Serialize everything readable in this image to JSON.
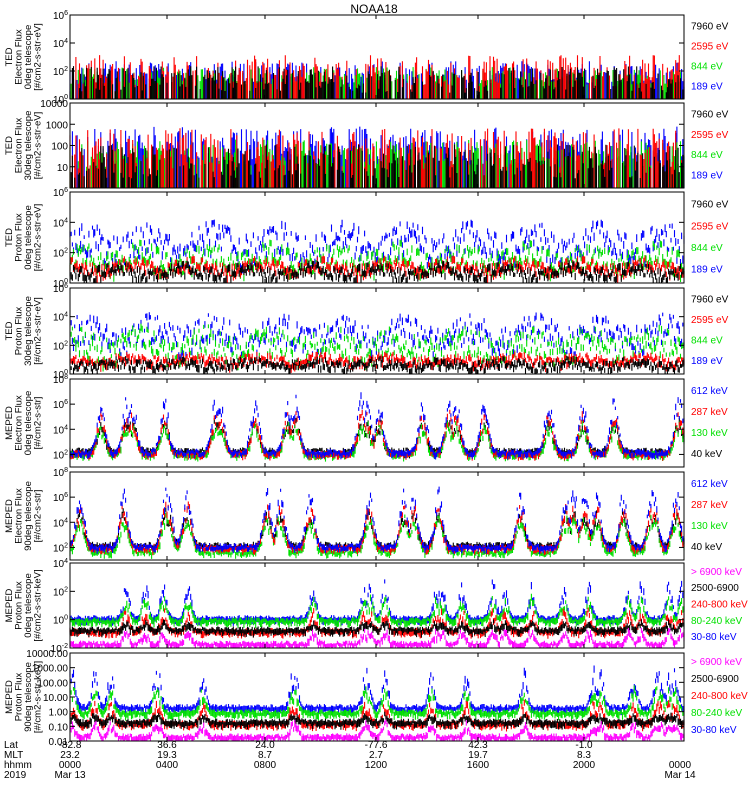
{
  "title": "NOAA18",
  "colors": {
    "black": "#000000",
    "red": "#ff0000",
    "green": "#00e000",
    "blue": "#0000ff",
    "magenta": "#ff00ff"
  },
  "chart_data": [
    {
      "type": "line",
      "seed": 11,
      "style": "spiky",
      "log_scale": true,
      "ylim": [
        1,
        1000000
      ],
      "ylabel": [
        "TED",
        "Electron Flux",
        "0deg telescope",
        "[#/cm2-s-str-eV]"
      ],
      "ytick_labels": [
        {
          "v": 1,
          "t": "10^0"
        },
        {
          "v": 100,
          "t": "10^2"
        },
        {
          "v": 10000,
          "t": "10^4"
        },
        {
          "v": 1000000,
          "t": "10^6"
        }
      ],
      "series": [
        {
          "name": "7960 eV",
          "color": "black",
          "base": 0.45,
          "amp": 0.6
        },
        {
          "name": "2595 eV",
          "color": "red",
          "base": 0.9,
          "amp": 0.7
        },
        {
          "name": "844 eV",
          "color": "green",
          "base": 1.0,
          "amp": 0.4
        },
        {
          "name": "189 eV",
          "color": "blue",
          "base": 1.1,
          "amp": 0.5
        }
      ]
    },
    {
      "type": "line",
      "seed": 23,
      "style": "spiky",
      "log_scale": true,
      "ylim": [
        1,
        10000
      ],
      "ylabel": [
        "TED",
        "Electron Flux",
        "30deg telescope",
        "[#/cm2-s-str-eV]"
      ],
      "ytick_labels": [
        {
          "v": 10,
          "t": "10"
        },
        {
          "v": 100,
          "t": "100"
        },
        {
          "v": 1000,
          "t": "1000"
        },
        {
          "v": 10000,
          "t": "10000"
        }
      ],
      "series": [
        {
          "name": "7960 eV",
          "color": "black",
          "base": 0.45,
          "amp": 0.5
        },
        {
          "name": "2595 eV",
          "color": "red",
          "base": 0.9,
          "amp": 0.6
        },
        {
          "name": "844 eV",
          "color": "green",
          "base": 1.0,
          "amp": 0.4
        },
        {
          "name": "189 eV",
          "color": "blue",
          "base": 1.3,
          "amp": 0.5
        }
      ]
    },
    {
      "type": "line",
      "seed": 37,
      "style": "noisy",
      "log_scale": true,
      "ylim": [
        1,
        1000000
      ],
      "ylabel": [
        "TED",
        "Proton Flux",
        "0deg telescope",
        "[#/cm2-s-str-eV]"
      ],
      "ytick_labels": [
        {
          "v": 1,
          "t": "10^0"
        },
        {
          "v": 100,
          "t": "10^2"
        },
        {
          "v": 10000,
          "t": "10^4"
        },
        {
          "v": 1000000,
          "t": "10^6"
        }
      ],
      "series": [
        {
          "name": "7960 eV",
          "color": "black",
          "base": 0.6,
          "amp": 0.4
        },
        {
          "name": "2595 eV",
          "color": "red",
          "base": 0.9,
          "amp": 0.4
        },
        {
          "name": "844 eV",
          "color": "green",
          "base": 1.1,
          "amp": 0.8
        },
        {
          "name": "189 eV",
          "color": "blue",
          "base": 2.0,
          "amp": 1.0
        }
      ]
    },
    {
      "type": "line",
      "seed": 53,
      "style": "noisy",
      "log_scale": true,
      "ylim": [
        1,
        1000000
      ],
      "ylabel": [
        "TED",
        "Proton Flux",
        "30deg telescope",
        "[#/cm2-s-str-eV]"
      ],
      "ytick_labels": [
        {
          "v": 1,
          "t": "10^0"
        },
        {
          "v": 100,
          "t": "10^2"
        },
        {
          "v": 10000,
          "t": "10^4"
        },
        {
          "v": 1000000,
          "t": "10^6"
        }
      ],
      "series": [
        {
          "name": "7960 eV",
          "color": "black",
          "base": 0.6,
          "amp": 0.3
        },
        {
          "name": "2595 eV",
          "color": "red",
          "base": 0.9,
          "amp": 0.3
        },
        {
          "name": "844 eV",
          "color": "green",
          "base": 1.5,
          "amp": 0.9
        },
        {
          "name": "189 eV",
          "color": "blue",
          "base": 2.3,
          "amp": 0.9
        }
      ]
    },
    {
      "type": "line",
      "seed": 71,
      "style": "peaks",
      "log_scale": true,
      "ylim": [
        10,
        100000000
      ],
      "ylabel": [
        "MEPED",
        "Electron Flux",
        "0deg telescope",
        "[#/cm2-s-str]"
      ],
      "ytick_labels": [
        {
          "v": 100,
          "t": "10^2"
        },
        {
          "v": 10000,
          "t": "10^4"
        },
        {
          "v": 1000000,
          "t": "10^6"
        },
        {
          "v": 100000000,
          "t": "10^8"
        }
      ],
      "series": [
        {
          "name": "612 keV",
          "color": "blue",
          "base": 2.1,
          "amp": 4.6
        },
        {
          "name": "287 keV",
          "color": "red",
          "base": 2.0,
          "amp": 3.4
        },
        {
          "name": "130 keV",
          "color": "green",
          "base": 1.95,
          "amp": 2.6
        },
        {
          "name": "40 keV",
          "color": "black",
          "base": 2.2,
          "amp": 2.6
        }
      ]
    },
    {
      "type": "line",
      "seed": 89,
      "style": "peaks",
      "log_scale": true,
      "ylim": [
        10,
        100000000
      ],
      "ylabel": [
        "MEPED",
        "Electron Flux",
        "90deg telescope",
        "[#/cm2-s-str]"
      ],
      "ytick_labels": [
        {
          "v": 100,
          "t": "10^2"
        },
        {
          "v": 10000,
          "t": "10^4"
        },
        {
          "v": 1000000,
          "t": "10^6"
        },
        {
          "v": 100000000,
          "t": "10^8"
        }
      ],
      "series": [
        {
          "name": "612 keV",
          "color": "blue",
          "base": 2.0,
          "amp": 4.7
        },
        {
          "name": "287 keV",
          "color": "red",
          "base": 1.9,
          "amp": 3.6
        },
        {
          "name": "130 keV",
          "color": "green",
          "base": 1.6,
          "amp": 3.0
        },
        {
          "name": "40 keV",
          "color": "black",
          "base": 2.1,
          "amp": 2.9
        }
      ]
    },
    {
      "type": "line",
      "seed": 97,
      "style": "proton",
      "log_scale": true,
      "ylim": [
        0.01,
        10000
      ],
      "ylabel": [
        "MEPED",
        "Proton Flux",
        "0deg telescope",
        "[#/cm2-s-str-keV]"
      ],
      "ytick_labels": [
        {
          "v": 0.01,
          "t": "10^-2"
        },
        {
          "v": 1,
          "t": "10^0"
        },
        {
          "v": 100,
          "t": "10^2"
        },
        {
          "v": 10000,
          "t": "10^4"
        }
      ],
      "series": [
        {
          "name": "> 6900 keV",
          "color": "magenta",
          "base": -1.6,
          "amp": 1.0
        },
        {
          "name": "2500-6900",
          "color": "black",
          "base": -0.6,
          "amp": 0.5
        },
        {
          "name": "240-800 keV",
          "color": "red",
          "base": -0.7,
          "amp": 1.4
        },
        {
          "name": "80-240 keV",
          "color": "green",
          "base": 0.05,
          "amp": 1.6
        },
        {
          "name": "30-80 keV",
          "color": "blue",
          "base": 0.2,
          "amp": 2.4
        }
      ]
    },
    {
      "type": "line",
      "seed": 113,
      "style": "proton",
      "log_scale": true,
      "ylim": [
        0.01,
        10000
      ],
      "ylabel": [
        "MEPED",
        "Proton Flux",
        "90deg telescope",
        "[#/cm2-s-str-keV]"
      ],
      "ytick_labels": [
        {
          "v": 0.01,
          "t": "0.01"
        },
        {
          "v": 0.1,
          "t": "0.10"
        },
        {
          "v": 1,
          "t": "1.00"
        },
        {
          "v": 10,
          "t": "10.00"
        },
        {
          "v": 100,
          "t": "100.00"
        },
        {
          "v": 1000,
          "t": "1000.00"
        },
        {
          "v": 10000,
          "t": "10000.00"
        }
      ],
      "series": [
        {
          "name": "> 6900 keV",
          "color": "magenta",
          "base": -1.6,
          "amp": 1.0
        },
        {
          "name": "2500-6900",
          "color": "black",
          "base": -0.6,
          "amp": 0.5
        },
        {
          "name": "240-800 keV",
          "color": "red",
          "base": -0.7,
          "amp": 1.4
        },
        {
          "name": "80-240 keV",
          "color": "green",
          "base": 0.05,
          "amp": 1.6
        },
        {
          "name": "30-80 keV",
          "color": "blue",
          "base": 0.4,
          "amp": 2.4
        }
      ]
    }
  ],
  "x_axis": {
    "row_labels": [
      "Lat",
      "MLT",
      "hhmm",
      "2019"
    ],
    "ticks": [
      {
        "lat": "-82.8",
        "mlt": "23.2",
        "hhmm": "0000",
        "date": "Mar 13"
      },
      {
        "lat": "36.6",
        "mlt": "19.3",
        "hhmm": "0400",
        "date": ""
      },
      {
        "lat": "24.0",
        "mlt": "8.7",
        "hhmm": "0800",
        "date": ""
      },
      {
        "lat": "-77.6",
        "mlt": "2.7",
        "hhmm": "1200",
        "date": ""
      },
      {
        "lat": "42.3",
        "mlt": "19.7",
        "hhmm": "1600",
        "date": ""
      },
      {
        "lat": "-1.0",
        "mlt": "8.3",
        "hhmm": "2000",
        "date": ""
      },
      {
        "lat": "",
        "mlt": "",
        "hhmm": "0000",
        "date": "Mar 14"
      }
    ]
  }
}
